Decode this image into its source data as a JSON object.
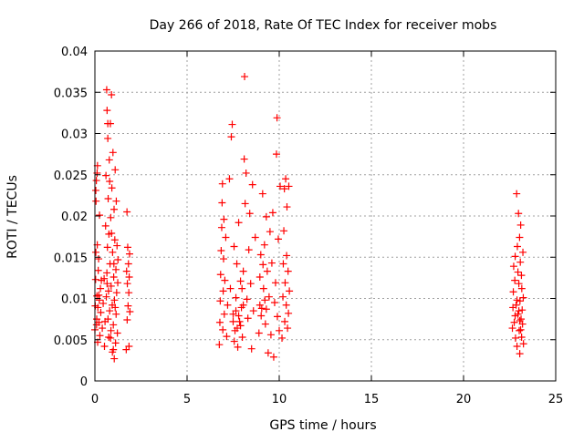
{
  "chart_data": {
    "type": "scatter",
    "title": "Day 266 of 2018, Rate Of TEC Index for receiver mobs",
    "xlabel": "GPS time / hours",
    "ylabel": "ROTI / TECUs",
    "xlim": [
      0,
      25
    ],
    "ylim": [
      0,
      0.04
    ],
    "xticks": [
      0,
      5,
      10,
      15,
      20,
      25
    ],
    "xtick_labels": [
      "0",
      "5",
      "10",
      "15",
      "20",
      "25"
    ],
    "yticks": [
      0,
      0.005,
      0.01,
      0.015,
      0.02,
      0.025,
      0.03,
      0.035,
      0.04
    ],
    "ytick_labels": [
      "0",
      "0.005",
      "0.01",
      "0.015",
      "0.02",
      "0.025",
      "0.03",
      "0.035",
      "0.04"
    ],
    "grid": true,
    "marker": "+",
    "marker_color": "#ff0000",
    "grid_color": "#a0a0a0",
    "series": [
      {
        "name": "ROTI",
        "points": [
          [
            0.0,
            0.0062
          ],
          [
            0.02,
            0.0091
          ],
          [
            0.04,
            0.0123
          ],
          [
            0.05,
            0.0156
          ],
          [
            0.06,
            0.0218
          ],
          [
            0.08,
            0.0243
          ],
          [
            0.09,
            0.0068
          ],
          [
            0.1,
            0.0075
          ],
          [
            0.11,
            0.0103
          ],
          [
            0.12,
            0.0252
          ],
          [
            0.14,
            0.0261
          ],
          [
            0.15,
            0.0047
          ],
          [
            0.16,
            0.0089
          ],
          [
            0.18,
            0.0134
          ],
          [
            0.2,
            0.0148
          ],
          [
            0.22,
            0.0071
          ],
          [
            0.24,
            0.0098
          ],
          [
            0.25,
            0.0201
          ],
          [
            0.27,
            0.0055
          ],
          [
            0.3,
            0.0112
          ],
          [
            0.32,
            0.0083
          ],
          [
            0.35,
            0.0122
          ],
          [
            0.05,
            0.0231
          ],
          [
            0.13,
            0.0165
          ],
          [
            0.21,
            0.0104
          ],
          [
            0.4,
            0.0064
          ],
          [
            0.45,
            0.0094
          ],
          [
            0.5,
            0.0124
          ],
          [
            0.52,
            0.0042
          ],
          [
            0.55,
            0.0072
          ],
          [
            0.58,
            0.0188
          ],
          [
            0.6,
            0.0249
          ],
          [
            0.62,
            0.0102
          ],
          [
            0.64,
            0.0353
          ],
          [
            0.65,
            0.0131
          ],
          [
            0.66,
            0.0328
          ],
          [
            0.68,
            0.0162
          ],
          [
            0.7,
            0.0294
          ],
          [
            0.71,
            0.0075
          ],
          [
            0.72,
            0.0221
          ],
          [
            0.74,
            0.0109
          ],
          [
            0.75,
            0.0053
          ],
          [
            0.76,
            0.0178
          ],
          [
            0.78,
            0.0268
          ],
          [
            0.8,
            0.0085
          ],
          [
            0.82,
            0.0142
          ],
          [
            0.84,
            0.0312
          ],
          [
            0.86,
            0.0198
          ],
          [
            0.87,
            0.0061
          ],
          [
            0.88,
            0.0115
          ],
          [
            0.9,
            0.0347
          ],
          [
            0.92,
            0.0234
          ],
          [
            0.94,
            0.0092
          ],
          [
            0.95,
            0.0035
          ],
          [
            0.96,
            0.0156
          ],
          [
            0.98,
            0.0277
          ],
          [
            1.0,
            0.0068
          ],
          [
            1.02,
            0.0126
          ],
          [
            1.04,
            0.0208
          ],
          [
            1.05,
            0.0027
          ],
          [
            1.06,
            0.0098
          ],
          [
            1.08,
            0.0171
          ],
          [
            1.1,
            0.0256
          ],
          [
            1.12,
            0.0046
          ],
          [
            1.14,
            0.0135
          ],
          [
            1.15,
            0.0081
          ],
          [
            1.16,
            0.0218
          ],
          [
            1.18,
            0.0107
          ],
          [
            1.2,
            0.0164
          ],
          [
            1.22,
            0.0058
          ],
          [
            1.24,
            0.0119
          ],
          [
            1.25,
            0.0147
          ],
          [
            0.7,
            0.0312
          ],
          [
            0.8,
            0.0242
          ],
          [
            0.9,
            0.0179
          ],
          [
            1.0,
            0.0038
          ],
          [
            1.1,
            0.0089
          ],
          [
            0.66,
            0.0118
          ],
          [
            0.85,
            0.0052
          ],
          [
            1.03,
            0.0142
          ],
          [
            1.7,
            0.0038
          ],
          [
            1.72,
            0.0133
          ],
          [
            1.74,
            0.0205
          ],
          [
            1.75,
            0.0074
          ],
          [
            1.76,
            0.0118
          ],
          [
            1.78,
            0.0162
          ],
          [
            1.8,
            0.0091
          ],
          [
            1.82,
            0.0142
          ],
          [
            1.84,
            0.0107
          ],
          [
            1.85,
            0.0042
          ],
          [
            1.86,
            0.0126
          ],
          [
            1.88,
            0.0154
          ],
          [
            1.9,
            0.0084
          ],
          [
            6.75,
            0.0044
          ],
          [
            6.78,
            0.0071
          ],
          [
            6.8,
            0.0097
          ],
          [
            6.82,
            0.0129
          ],
          [
            6.85,
            0.0158
          ],
          [
            6.88,
            0.0186
          ],
          [
            6.9,
            0.0216
          ],
          [
            6.92,
            0.0239
          ],
          [
            6.94,
            0.0062
          ],
          [
            6.96,
            0.0109
          ],
          [
            6.98,
            0.0148
          ],
          [
            7.0,
            0.0196
          ],
          [
            7.02,
            0.0081
          ],
          [
            7.05,
            0.0122
          ],
          [
            7.1,
            0.0174
          ],
          [
            7.15,
            0.0054
          ],
          [
            7.2,
            0.0092
          ],
          [
            7.3,
            0.0245
          ],
          [
            7.35,
            0.0112
          ],
          [
            7.4,
            0.0296
          ],
          [
            7.45,
            0.0311
          ],
          [
            7.5,
            0.0081
          ],
          [
            7.55,
            0.0163
          ],
          [
            7.6,
            0.0061
          ],
          [
            7.65,
            0.0101
          ],
          [
            7.7,
            0.0142
          ],
          [
            7.75,
            0.0041
          ],
          [
            7.8,
            0.0192
          ],
          [
            7.85,
            0.0072
          ],
          [
            7.9,
            0.0121
          ],
          [
            7.95,
            0.0089
          ],
          [
            8.0,
            0.0053
          ],
          [
            8.05,
            0.0133
          ],
          [
            8.1,
            0.0269
          ],
          [
            8.12,
            0.0369
          ],
          [
            8.15,
            0.0215
          ],
          [
            8.2,
            0.0252
          ],
          [
            8.25,
            0.0099
          ],
          [
            8.3,
            0.0076
          ],
          [
            8.35,
            0.0159
          ],
          [
            8.4,
            0.0203
          ],
          [
            8.45,
            0.0118
          ],
          [
            8.5,
            0.0039
          ],
          [
            8.55,
            0.0238
          ],
          [
            8.6,
            0.0085
          ],
          [
            8.7,
            0.0174
          ],
          [
            7.5,
            0.0072
          ],
          [
            7.65,
            0.0085
          ],
          [
            7.72,
            0.0064
          ],
          [
            7.8,
            0.0079
          ],
          [
            7.9,
            0.0067
          ],
          [
            8.05,
            0.0092
          ],
          [
            7.56,
            0.0048
          ],
          [
            7.98,
            0.0112
          ],
          [
            8.9,
            0.0058
          ],
          [
            8.95,
            0.0126
          ],
          [
            9.0,
            0.0153
          ],
          [
            9.05,
            0.0088
          ],
          [
            9.1,
            0.0227
          ],
          [
            9.15,
            0.0112
          ],
          [
            9.2,
            0.0165
          ],
          [
            9.25,
            0.0069
          ],
          [
            9.3,
            0.0199
          ],
          [
            9.35,
            0.0133
          ],
          [
            9.4,
            0.0034
          ],
          [
            9.45,
            0.0102
          ],
          [
            9.5,
            0.0181
          ],
          [
            9.55,
            0.0056
          ],
          [
            9.6,
            0.0143
          ],
          [
            9.65,
            0.0204
          ],
          [
            9.7,
            0.0029
          ],
          [
            9.75,
            0.0095
          ],
          [
            9.8,
            0.0119
          ],
          [
            9.85,
            0.0275
          ],
          [
            9.88,
            0.0319
          ],
          [
            9.9,
            0.0078
          ],
          [
            9.95,
            0.0172
          ],
          [
            10.0,
            0.0061
          ],
          [
            10.05,
            0.0236
          ],
          [
            8.95,
            0.0092
          ],
          [
            9.02,
            0.0079
          ],
          [
            9.12,
            0.0141
          ],
          [
            9.22,
            0.0098
          ],
          [
            9.3,
            0.0087
          ],
          [
            10.15,
            0.0052
          ],
          [
            10.2,
            0.0102
          ],
          [
            10.22,
            0.0142
          ],
          [
            10.25,
            0.0182
          ],
          [
            10.28,
            0.0233
          ],
          [
            10.3,
            0.0072
          ],
          [
            10.32,
            0.0119
          ],
          [
            10.35,
            0.0245
          ],
          [
            10.38,
            0.0092
          ],
          [
            10.4,
            0.0152
          ],
          [
            10.42,
            0.0211
          ],
          [
            10.45,
            0.0064
          ],
          [
            10.48,
            0.0133
          ],
          [
            10.5,
            0.0082
          ],
          [
            10.52,
            0.0236
          ],
          [
            10.55,
            0.0109
          ],
          [
            22.65,
            0.0064
          ],
          [
            22.68,
            0.0089
          ],
          [
            22.7,
            0.0108
          ],
          [
            22.72,
            0.0139
          ],
          [
            22.75,
            0.0071
          ],
          [
            22.78,
            0.0122
          ],
          [
            22.8,
            0.0151
          ],
          [
            22.82,
            0.0052
          ],
          [
            22.85,
            0.0092
          ],
          [
            22.88,
            0.0227
          ],
          [
            22.9,
            0.0042
          ],
          [
            22.92,
            0.0163
          ],
          [
            22.95,
            0.0081
          ],
          [
            22.98,
            0.0203
          ],
          [
            23.0,
            0.0118
          ],
          [
            23.02,
            0.0061
          ],
          [
            23.04,
            0.0174
          ],
          [
            23.05,
            0.0033
          ],
          [
            23.06,
            0.0097
          ],
          [
            23.08,
            0.0144
          ],
          [
            23.1,
            0.0189
          ],
          [
            23.12,
            0.0075
          ],
          [
            23.14,
            0.0128
          ],
          [
            23.15,
            0.0053
          ],
          [
            23.16,
            0.0112
          ],
          [
            23.18,
            0.0086
          ],
          [
            23.2,
            0.0069
          ],
          [
            23.22,
            0.0156
          ],
          [
            23.24,
            0.0101
          ],
          [
            23.25,
            0.0045
          ],
          [
            22.8,
            0.0079
          ],
          [
            22.9,
            0.0098
          ],
          [
            23.0,
            0.0085
          ],
          [
            23.1,
            0.0062
          ],
          [
            22.95,
            0.0132
          ],
          [
            23.05,
            0.0073
          ]
        ]
      }
    ]
  }
}
